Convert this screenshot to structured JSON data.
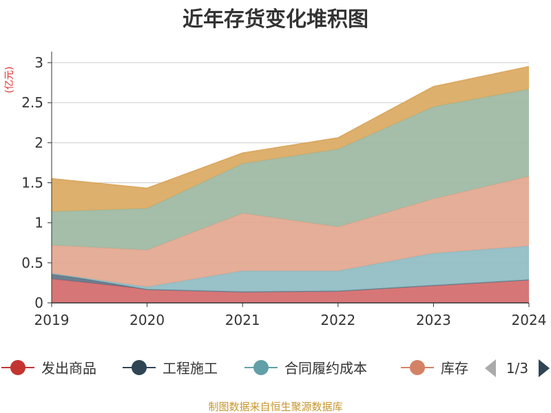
{
  "chart_data": {
    "type": "area",
    "stacked": true,
    "title": "近年存货变化堆积图",
    "y_unit": "(亿元)",
    "x": [
      "2019",
      "2020",
      "2021",
      "2022",
      "2023",
      "2024"
    ],
    "ylim": [
      0,
      3
    ],
    "yticks": [
      "0",
      "0.5",
      "1",
      "1.5",
      "2",
      "2.5",
      "3"
    ],
    "grid": true,
    "series": [
      {
        "name": "发出商品",
        "color": "#d46a6a",
        "legend_color": "#c23531",
        "values": [
          0.3,
          0.17,
          0.14,
          0.15,
          0.22,
          0.29
        ]
      },
      {
        "name": "工程施工",
        "color": "#5f7484",
        "legend_color": "#2f4554",
        "values": [
          0.07,
          0.0,
          0.0,
          0.0,
          0.0,
          0.0
        ]
      },
      {
        "name": "合同履约成本",
        "color": "#8fbcc3",
        "legend_color": "#61a0a8",
        "values": [
          0.0,
          0.03,
          0.26,
          0.25,
          0.4,
          0.42
        ]
      },
      {
        "name": "库存",
        "color": "#e3a78f",
        "legend_color": "#d48265",
        "values": [
          0.35,
          0.46,
          0.72,
          0.55,
          0.68,
          0.87
        ]
      },
      {
        "name": "",
        "color": "#9db9a2",
        "values": [
          0.42,
          0.52,
          0.62,
          0.97,
          1.15,
          1.09
        ]
      },
      {
        "name": "",
        "color": "#dba961",
        "values": [
          0.41,
          0.25,
          0.13,
          0.14,
          0.25,
          0.28
        ]
      }
    ],
    "legend_position": "bottom"
  },
  "legend": {
    "page_label": "1/3",
    "prev_icon": "triangle-left-icon",
    "next_icon": "triangle-right-icon"
  },
  "source": "制图数据来自恒生聚源数据库"
}
